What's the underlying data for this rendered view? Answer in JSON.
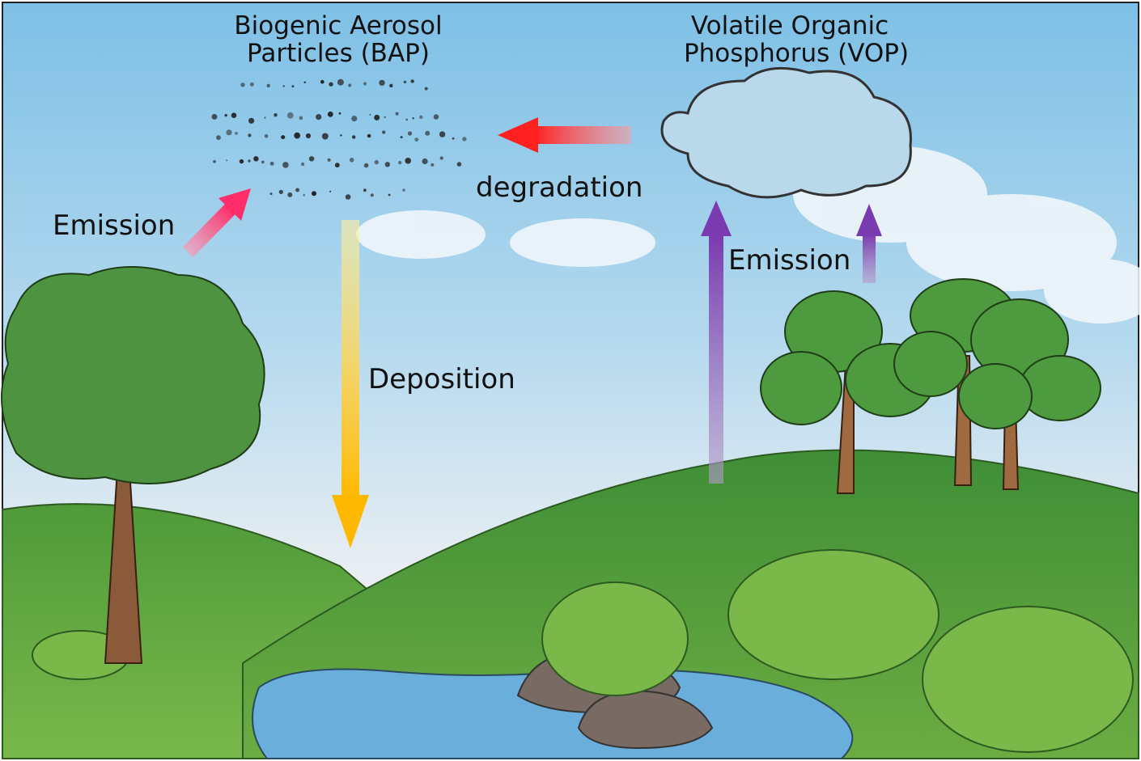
{
  "bap": {
    "lines": [
      "Biogenic Aerosol",
      "Particles (BAP)"
    ]
  },
  "vop": {
    "lines": [
      "Volatile Organic",
      "Phosphorus (VOP)"
    ]
  },
  "arrows": [
    {
      "label": "Emission"
    },
    {
      "label": "degradation"
    },
    {
      "label": "Deposition"
    },
    {
      "label": "Emission"
    }
  ]
}
